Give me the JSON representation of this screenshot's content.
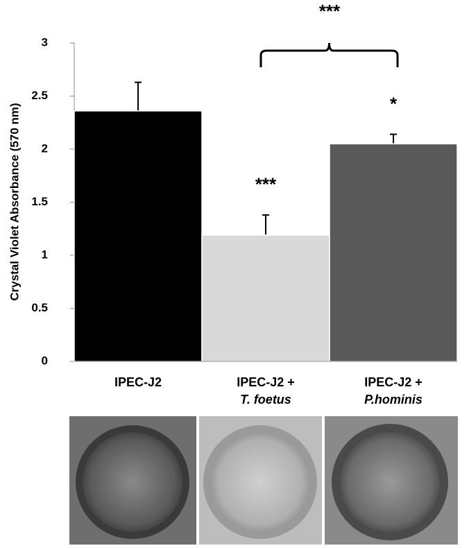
{
  "chart_data": {
    "type": "bar",
    "ylabel": "Crystal Violet Absorbance (570 nm)",
    "categories": [
      [
        "IPEC-J2"
      ],
      [
        "IPEC-J2 +",
        "T. foetus"
      ],
      [
        "IPEC-J2 +",
        "P.hominis"
      ]
    ],
    "values": [
      2.36,
      1.19,
      2.05
    ],
    "errors": [
      0.27,
      0.19,
      0.09
    ],
    "colors": [
      "#000000",
      "#d9d9d9",
      "#595959"
    ],
    "ylim": [
      0,
      3
    ],
    "yticks": [
      0,
      0.5,
      1,
      1.5,
      2,
      2.5,
      3
    ],
    "annotations": [
      "***",
      "*",
      "***"
    ]
  }
}
